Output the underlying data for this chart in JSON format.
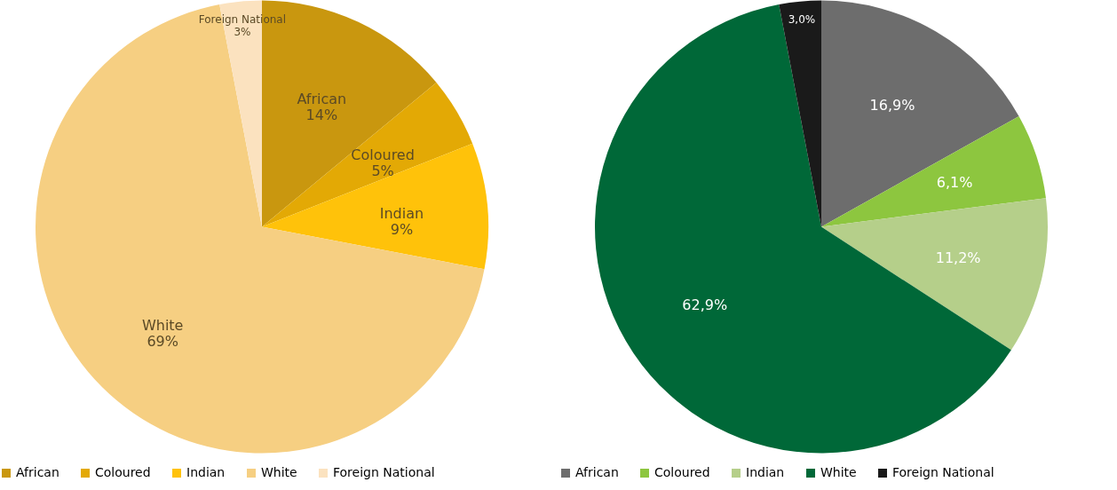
{
  "chart_data": [
    {
      "type": "pie",
      "categories": [
        "African",
        "Coloured",
        "Indian",
        "White",
        "Foreign National"
      ],
      "values": [
        14,
        5,
        9,
        69,
        3
      ],
      "colors": [
        "#c9970f",
        "#e3a905",
        "#ffc20a",
        "#f6cf82",
        "#fbe2bf"
      ],
      "value_labels": [
        "African\n14%",
        "Coloured\n5%",
        "Indian\n9%",
        "White\n69%",
        "Foreign National\n3%"
      ],
      "legend": "bottom"
    },
    {
      "type": "pie",
      "categories": [
        "African",
        "Coloured",
        "Indian",
        "White",
        "Foreign National"
      ],
      "values": [
        16.9,
        6.1,
        11.2,
        62.9,
        3.0
      ],
      "colors": [
        "#6d6d6d",
        "#8dc63f",
        "#b5cf8a",
        "#006838",
        "#1a1a1a"
      ],
      "value_labels": [
        "16,9%",
        "6,1%",
        "11,2%",
        "62,9%",
        "3,0%"
      ],
      "legend": "bottom"
    }
  ]
}
